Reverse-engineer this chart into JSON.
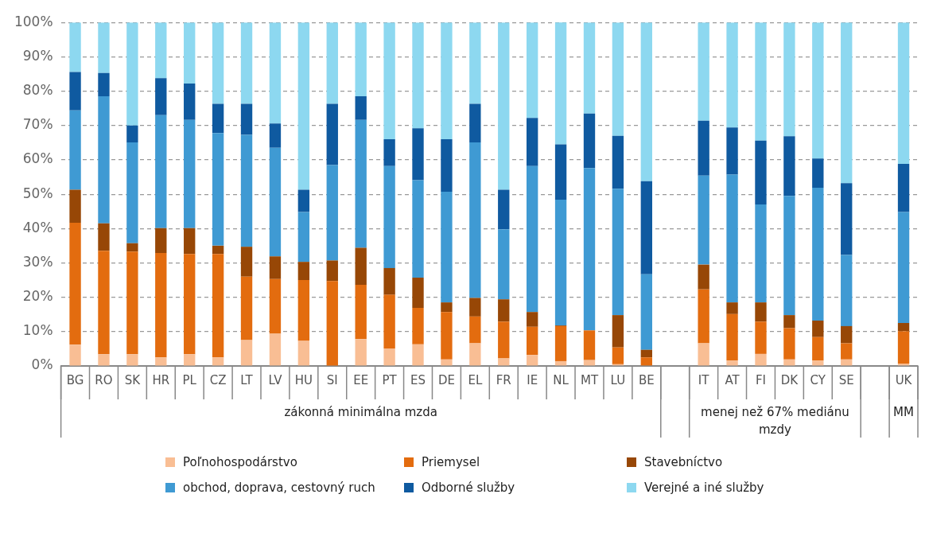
{
  "chart_data": {
    "type": "bar",
    "stacked": true,
    "categories": [
      "BG",
      "RO",
      "SK",
      "HR",
      "PL",
      "CZ",
      "LT",
      "LV",
      "HU",
      "SI",
      "EE",
      "PT",
      "ES",
      "DE",
      "EL",
      "FR",
      "IE",
      "NL",
      "MT",
      "LU",
      "BE",
      null,
      "IT",
      "AT",
      "FI",
      "DK",
      "CY",
      "SE",
      null,
      "UK"
    ],
    "series": [
      {
        "name": "Poľnohospodárstvo",
        "color": "#f9be94",
        "values": [
          6.2,
          3.4,
          3.4,
          2.5,
          3.4,
          2.5,
          7.5,
          9.4,
          7.3,
          0,
          7.8,
          5.1,
          6.3,
          1.9,
          6.6,
          2.2,
          3.2,
          1.4,
          1.7,
          0.5,
          0,
          null,
          6.6,
          1.6,
          3.5,
          1.9,
          1.6,
          1.9,
          null,
          0.7
        ]
      },
      {
        "name": "Priemysel",
        "color": "#e36c0f",
        "values": [
          35.5,
          30.1,
          29.9,
          30.4,
          29.2,
          30.1,
          18.5,
          15.9,
          17.7,
          24.7,
          15.8,
          15.6,
          10.6,
          13.8,
          7.8,
          10.7,
          8.2,
          10.2,
          8.6,
          4.9,
          2.5,
          null,
          15.7,
          13.5,
          9.4,
          9.1,
          6.8,
          4.7,
          null,
          9.4
        ]
      },
      {
        "name": "Stavebníctvo",
        "color": "#974706",
        "values": [
          9.6,
          8.0,
          2.4,
          7.2,
          7.5,
          2.4,
          8.7,
          6.6,
          5.3,
          6.0,
          10.8,
          7.8,
          8.8,
          2.8,
          5.4,
          6.5,
          4.3,
          0.2,
          0.1,
          9.4,
          2.2,
          null,
          7.2,
          3.4,
          5.6,
          3.8,
          4.8,
          5.0,
          null,
          2.4
        ]
      },
      {
        "name": "obchod, doprava, cestovný ruch",
        "color": "#3f9ad3",
        "values": [
          23.1,
          37.0,
          29.4,
          32.9,
          31.5,
          32.8,
          32.6,
          31.6,
          14.5,
          27.8,
          37.2,
          29.7,
          28.4,
          32.2,
          45.3,
          20.4,
          42.5,
          36.6,
          47.2,
          36.8,
          22.0,
          null,
          25.9,
          37.2,
          28.5,
          34.7,
          38.7,
          20.7,
          null,
          32.3
        ]
      },
      {
        "name": "Odborné služby",
        "color": "#0f5aa0",
        "values": [
          11.2,
          6.8,
          4.9,
          10.8,
          10.6,
          8.5,
          9.0,
          7.1,
          6.5,
          17.8,
          6.9,
          7.8,
          15.1,
          15.3,
          11.2,
          11.5,
          14.0,
          16.1,
          15.9,
          15.4,
          27.1,
          null,
          16.0,
          13.7,
          18.6,
          17.4,
          8.5,
          20.9,
          null,
          14.0
        ]
      },
      {
        "name": "Verejné a iné služby",
        "color": "#8dd8f0",
        "values": [
          14.4,
          14.7,
          30.0,
          16.2,
          17.8,
          23.7,
          23.7,
          29.4,
          48.7,
          23.7,
          21.5,
          34.0,
          30.8,
          34.0,
          23.7,
          48.7,
          27.8,
          35.6,
          26.5,
          33.0,
          46.2,
          null,
          28.6,
          30.6,
          34.4,
          33.1,
          39.6,
          46.8,
          null,
          41.2
        ]
      }
    ],
    "ylim": [
      0,
      100
    ],
    "yticks": [
      {
        "value": 0,
        "label": "0%"
      },
      {
        "value": 10,
        "label": "10%"
      },
      {
        "value": 20,
        "label": "20%"
      },
      {
        "value": 30,
        "label": "30%"
      },
      {
        "value": 40,
        "label": "40%"
      },
      {
        "value": 50,
        "label": "50%"
      },
      {
        "value": 60,
        "label": "60%"
      },
      {
        "value": 70,
        "label": "70%"
      },
      {
        "value": 80,
        "label": "80%"
      },
      {
        "value": 90,
        "label": "90%"
      },
      {
        "value": 100,
        "label": "100%"
      }
    ],
    "grid": "y",
    "legend": "bottom",
    "annotations": [
      "zákonná minimálna mzda",
      "menej než 67% mediánu mzdy",
      "MM"
    ]
  }
}
